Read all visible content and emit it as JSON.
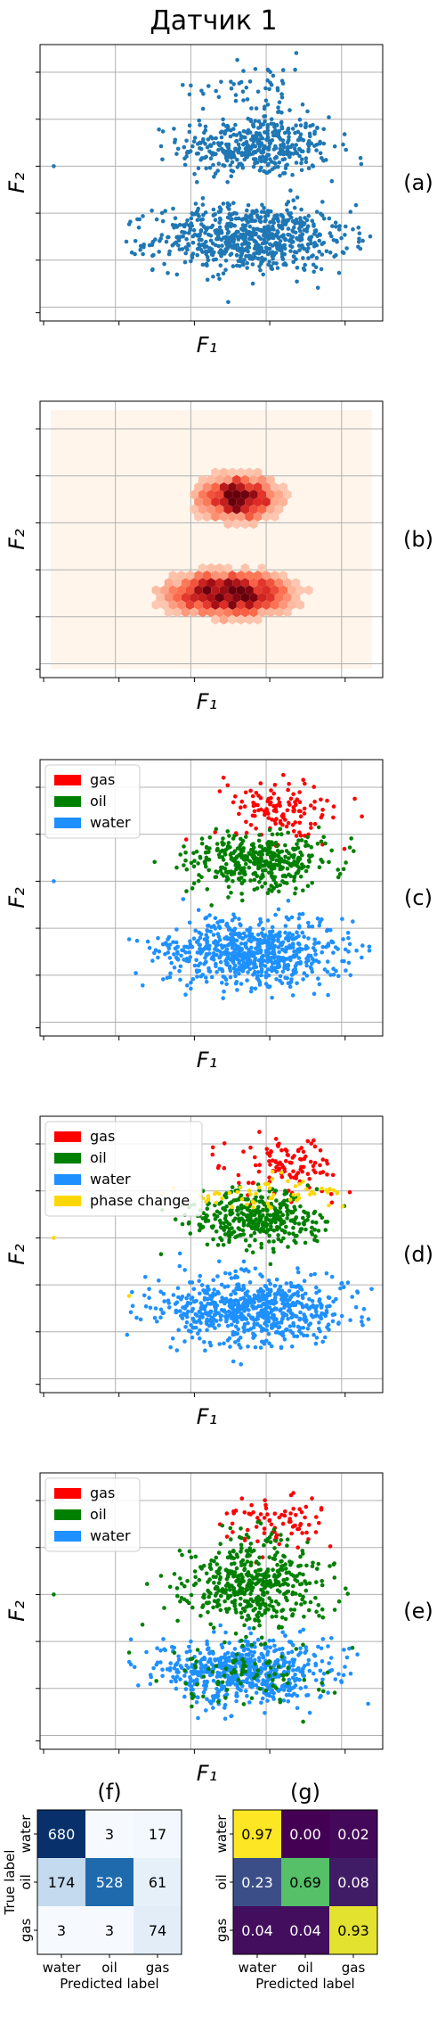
{
  "figure": {
    "title": "Датчик 1"
  },
  "colors": {
    "blue": "#1f77b4",
    "water": "#1e90ff",
    "oil": "#008000",
    "gas": "#ff0000",
    "phase_change": "#ffd700",
    "grid": "#b0b0b0"
  },
  "chart_data": [
    {
      "type": "scatter",
      "panel_label": "(a)",
      "xlabel": "F₁",
      "ylabel": "F₂",
      "xlim": [
        0,
        100
      ],
      "ylim": [
        0,
        100
      ],
      "grid": true,
      "legend": [],
      "clusters": [
        {
          "name": "",
          "color": "#1f77b4",
          "center": [
            63,
            63
          ],
          "spread": [
            11,
            5.5
          ],
          "count": 420
        },
        {
          "name": "",
          "color": "#1f77b4",
          "center": [
            62,
            30
          ],
          "spread": [
            14,
            6
          ],
          "count": 720
        },
        {
          "name": "",
          "color": "#1f77b4",
          "center": [
            62,
            85
          ],
          "spread": [
            9,
            6
          ],
          "count": 60
        }
      ],
      "outliers": [
        [
          4,
          56
        ],
        [
          26,
          35
        ]
      ]
    },
    {
      "type": "heatmap",
      "panel_label": "(b)",
      "xlabel": "F₁",
      "ylabel": "F₂",
      "xlim": [
        0,
        100
      ],
      "ylim": [
        0,
        100
      ],
      "grid": true,
      "colormap": "Reds",
      "density_centers": [
        {
          "center": [
            58,
            65
          ],
          "spread": [
            7,
            5
          ],
          "weight": 1.0
        },
        {
          "center": [
            55,
            30
          ],
          "spread": [
            11,
            5
          ],
          "weight": 1.0
        }
      ]
    },
    {
      "type": "scatter",
      "panel_label": "(c)",
      "xlabel": "F₁",
      "ylabel": "F₂",
      "xlim": [
        0,
        100
      ],
      "ylim": [
        0,
        100
      ],
      "grid": true,
      "legend_position": "top-left",
      "legend": [
        "gas",
        "oil",
        "water"
      ],
      "clusters": [
        {
          "name": "gas",
          "color": "#ff0000",
          "center": [
            70,
            82
          ],
          "spread": [
            9,
            6
          ],
          "count": 130
        },
        {
          "name": "oil",
          "color": "#008000",
          "center": [
            63,
            63
          ],
          "spread": [
            10,
            5
          ],
          "count": 400
        },
        {
          "name": "water",
          "color": "#1e90ff",
          "center": [
            62,
            30
          ],
          "spread": [
            14,
            6
          ],
          "count": 700
        }
      ],
      "outliers": [
        [
          4,
          56
        ],
        [
          26,
          35
        ]
      ]
    },
    {
      "type": "scatter",
      "panel_label": "(d)",
      "xlabel": "F₁",
      "ylabel": "F₂",
      "xlim": [
        0,
        100
      ],
      "ylim": [
        0,
        100
      ],
      "grid": true,
      "legend_position": "top-left",
      "legend": [
        "gas",
        "oil",
        "water",
        "phase change"
      ],
      "clusters": [
        {
          "name": "gas",
          "color": "#ff0000",
          "center": [
            71,
            83
          ],
          "spread": [
            8,
            5
          ],
          "count": 110
        },
        {
          "name": "oil",
          "color": "#008000",
          "center": [
            63,
            63
          ],
          "spread": [
            9,
            5
          ],
          "count": 380
        },
        {
          "name": "water",
          "color": "#1e90ff",
          "center": [
            62,
            30
          ],
          "spread": [
            14,
            6
          ],
          "count": 700
        },
        {
          "name": "phase change",
          "color": "#ffd700",
          "center": [
            68,
            72
          ],
          "spread": [
            12,
            3
          ],
          "count": 60
        }
      ],
      "outliers": [
        [
          4,
          56
        ],
        [
          26,
          35
        ]
      ]
    },
    {
      "type": "scatter",
      "panel_label": "(e)",
      "xlabel": "F₁",
      "ylabel": "F₂",
      "xlim": [
        0,
        100
      ],
      "ylim": [
        0,
        100
      ],
      "grid": true,
      "legend_position": "top-left",
      "legend": [
        "gas",
        "oil",
        "water"
      ],
      "clusters": [
        {
          "name": "gas",
          "color": "#ff0000",
          "center": [
            70,
            82
          ],
          "spread": [
            7,
            5
          ],
          "count": 80
        },
        {
          "name": "oil",
          "color": "#008000",
          "center": [
            62,
            60
          ],
          "spread": [
            10,
            8
          ],
          "count": 480
        },
        {
          "name": "water",
          "color": "#1e90ff",
          "center": [
            60,
            28
          ],
          "spread": [
            13,
            6
          ],
          "count": 620
        },
        {
          "name": "oil",
          "color": "#008000",
          "center": [
            62,
            26
          ],
          "spread": [
            13,
            6
          ],
          "count": 90
        }
      ],
      "outliers": [
        [
          4,
          56
        ],
        [
          26,
          35
        ]
      ]
    },
    {
      "type": "table",
      "panel_label": "(f)",
      "xlabel": "Predicted label",
      "ylabel": "True label",
      "x_categories": [
        "water",
        "oil",
        "gas"
      ],
      "y_categories": [
        "water",
        "oil",
        "gas"
      ],
      "colormap": "Blues",
      "values": [
        [
          680,
          3,
          17
        ],
        [
          174,
          528,
          61
        ],
        [
          3,
          3,
          74
        ]
      ]
    },
    {
      "type": "table",
      "panel_label": "(g)",
      "xlabel": "Predicted label",
      "ylabel": "",
      "x_categories": [
        "water",
        "oil",
        "gas"
      ],
      "y_categories": [
        "water",
        "oil",
        "gas"
      ],
      "colormap": "viridis",
      "values": [
        [
          "0.97",
          "0.00",
          "0.02"
        ],
        [
          "0.23",
          "0.69",
          "0.08"
        ],
        [
          "0.04",
          "0.04",
          "0.93"
        ]
      ]
    }
  ]
}
